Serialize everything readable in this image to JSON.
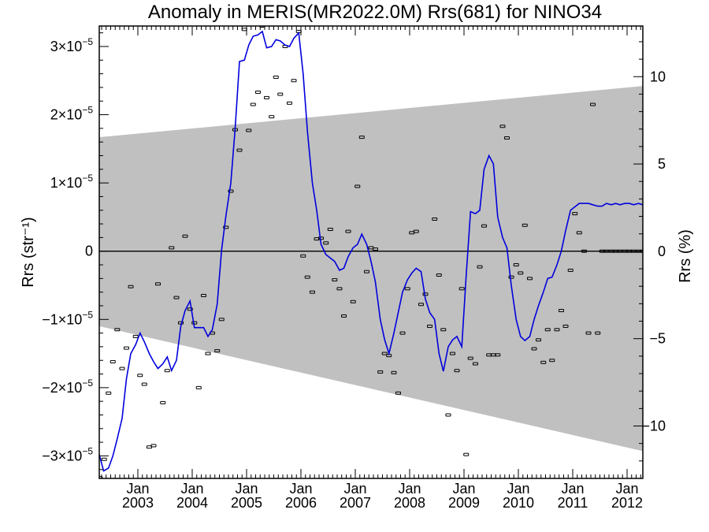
{
  "chart_data": {
    "type": "line",
    "title": "Anomaly in MERIS(MR2022.0M) Rrs(681) for NINO34",
    "ylabel_left": "Rrs (str⁻¹)",
    "ylabel_right": "Rrs (%)",
    "x_tick_month": "Jan",
    "x_tick_labels": [
      {
        "x": 2003.0,
        "year": "2003"
      },
      {
        "x": 2004.0,
        "year": "2004"
      },
      {
        "x": 2005.0,
        "year": "2005"
      },
      {
        "x": 2006.0,
        "year": "2006"
      },
      {
        "x": 2007.0,
        "year": "2007"
      },
      {
        "x": 2008.0,
        "year": "2008"
      },
      {
        "x": 2009.0,
        "year": "2009"
      },
      {
        "x": 2010.0,
        "year": "2010"
      },
      {
        "x": 2011.0,
        "year": "2011"
      },
      {
        "x": 2012.0,
        "year": "2012"
      }
    ],
    "y_tick_labels": [
      {
        "y": 3e-05,
        "label": "3×10",
        "exp": "−5"
      },
      {
        "y": 2e-05,
        "label": "2×10",
        "exp": "−5"
      },
      {
        "y": 1e-05,
        "label": "1×10",
        "exp": "−5"
      },
      {
        "y": 0,
        "label": "0",
        "exp": ""
      },
      {
        "y": -1e-05,
        "label": "−1×10",
        "exp": "−5"
      },
      {
        "y": -2e-05,
        "label": "−2×10",
        "exp": "−5"
      },
      {
        "y": -3e-05,
        "label": "−3×10",
        "exp": "−5"
      }
    ],
    "y2_tick_labels": [
      {
        "y": 10,
        "label": "10"
      },
      {
        "y": 5,
        "label": "5"
      },
      {
        "y": 0,
        "label": "0"
      },
      {
        "y": -5,
        "label": "−5"
      },
      {
        "y": -10,
        "label": "−10"
      }
    ],
    "xlim": [
      2002.29,
      2012.29
    ],
    "ylim": [
      -3.33e-05,
      3.3e-05
    ],
    "y2lim": [
      -13.0,
      12.9
    ],
    "grid": false,
    "colors": {
      "line": "#0000dd",
      "band": "#c0c0c0",
      "points": "#000000"
    },
    "band": {
      "x": [
        2002.29,
        2012.29
      ],
      "upper": [
        1.67e-05,
        2.42e-05
      ],
      "lower": [
        -1.1e-05,
        -2.93e-05
      ]
    },
    "series": [
      {
        "kind": "line",
        "x": [
          2002.29,
          2002.37,
          2002.46,
          2002.54,
          2002.62,
          2002.71,
          2002.79,
          2002.87,
          2002.96,
          2003.04,
          2003.12,
          2003.21,
          2003.29,
          2003.37,
          2003.46,
          2003.54,
          2003.62,
          2003.71,
          2003.79,
          2003.87,
          2003.96,
          2004.04,
          2004.12,
          2004.21,
          2004.29,
          2004.37,
          2004.46,
          2004.54,
          2004.62,
          2004.71,
          2004.79,
          2004.87,
          2004.96,
          2005.04,
          2005.12,
          2005.21,
          2005.29,
          2005.37,
          2005.46,
          2005.54,
          2005.62,
          2005.71,
          2005.79,
          2005.87,
          2005.96,
          2006.04,
          2006.12,
          2006.21,
          2006.29,
          2006.37,
          2006.46,
          2006.54,
          2006.62,
          2006.71,
          2006.79,
          2006.87,
          2006.96,
          2007.04,
          2007.12,
          2007.21,
          2007.29,
          2007.37,
          2007.46,
          2007.54,
          2007.62,
          2007.71,
          2007.79,
          2007.87,
          2007.96,
          2008.04,
          2008.12,
          2008.21,
          2008.29,
          2008.37,
          2008.46,
          2008.54,
          2008.62,
          2008.71,
          2008.79,
          2008.87,
          2008.96,
          2009.04,
          2009.12,
          2009.21,
          2009.29,
          2009.37,
          2009.46,
          2009.54,
          2009.62,
          2009.71,
          2009.79,
          2009.87,
          2009.96,
          2010.04,
          2010.12,
          2010.21,
          2010.29,
          2010.37,
          2010.46,
          2010.54,
          2010.62,
          2010.71,
          2010.79,
          2010.87,
          2010.96,
          2011.04,
          2011.12,
          2011.21,
          2011.29,
          2011.37,
          2011.46,
          2011.54,
          2011.62,
          2011.71,
          2011.79,
          2011.87,
          2011.96,
          2012.04,
          2012.12,
          2012.21,
          2012.29
        ],
        "y": [
          -2.98e-05,
          -3.22e-05,
          -3.18e-05,
          -3e-05,
          -2.75e-05,
          -2.45e-05,
          -1.87e-05,
          -1.5e-05,
          -1.37e-05,
          -1.2e-05,
          -1.33e-05,
          -1.5e-05,
          -1.62e-05,
          -1.72e-05,
          -1.65e-05,
          -1.55e-05,
          -1.75e-05,
          -1.6e-05,
          -1.1e-05,
          -8.7e-06,
          -7.3e-06,
          -1.12e-05,
          -1.12e-05,
          -1.12e-05,
          -1.25e-05,
          -1.15e-05,
          -7.8e-06,
          2e-07,
          5.2e-06,
          1e-05,
          1.8e-05,
          2.78e-05,
          2.8e-05,
          3.02e-05,
          3.15e-05,
          3.17e-05,
          3.22e-05,
          2.98e-05,
          3e-05,
          3.1e-05,
          3.08e-05,
          3.02e-05,
          3e-05,
          3.12e-05,
          3.2e-05,
          2.6e-05,
          1.75e-05,
          1e-05,
          6e-06,
          1e-06,
          -5e-07,
          -1e-06,
          -1.5e-06,
          -2.8e-06,
          -2.5e-06,
          -8e-07,
          5e-07,
          1e-06,
          2.5e-06,
          1e-06,
          -1.5e-06,
          -4.5e-06,
          -1e-05,
          -1.3e-05,
          -1.5e-05,
          -1.2e-05,
          -9e-06,
          -6e-06,
          -4.2e-06,
          -3.2e-06,
          -2.5e-06,
          -3e-06,
          -7e-06,
          -9e-06,
          -1e-05,
          -1.5e-05,
          -1.76e-05,
          -1.4e-05,
          -1.3e-05,
          -1.25e-05,
          -1.4e-05,
          -3.5e-06,
          5.8e-06,
          5.5e-06,
          6e-06,
          1.2e-05,
          1.4e-05,
          1.28e-05,
          5e-06,
          2e-06,
          5e-07,
          -5e-06,
          -1e-05,
          -1.25e-05,
          -1.31e-05,
          -1.25e-05,
          -1e-05,
          -8e-06,
          -6e-06,
          -4e-06,
          -3.8e-06,
          -2e-06,
          0.0,
          3e-06,
          6e-06,
          6.5e-06,
          7e-06,
          7e-06,
          7e-06,
          6.8e-06,
          6.6e-06,
          6.6e-06,
          7e-06,
          6.8e-06,
          7e-06,
          6.8e-06,
          7e-06,
          7e-06,
          6.8e-06,
          7e-06,
          6.8e-06
        ]
      },
      {
        "kind": "points",
        "x": [
          2002.3,
          2002.38,
          2002.46,
          2002.54,
          2002.62,
          2002.71,
          2002.79,
          2002.87,
          2002.96,
          2003.04,
          2003.12,
          2003.21,
          2003.29,
          2003.37,
          2003.46,
          2003.54,
          2003.62,
          2003.71,
          2003.79,
          2003.87,
          2003.96,
          2004.04,
          2004.12,
          2004.21,
          2004.29,
          2004.37,
          2004.46,
          2004.54,
          2004.62,
          2004.71,
          2004.79,
          2004.87,
          2004.96,
          2005.04,
          2005.12,
          2005.21,
          2005.29,
          2005.37,
          2005.46,
          2005.54,
          2005.62,
          2005.71,
          2005.79,
          2005.87,
          2005.96,
          2006.04,
          2006.12,
          2006.21,
          2006.29,
          2006.37,
          2006.46,
          2006.54,
          2006.62,
          2006.71,
          2006.79,
          2006.87,
          2006.96,
          2007.04,
          2007.12,
          2007.21,
          2007.29,
          2007.37,
          2007.46,
          2007.54,
          2007.62,
          2007.71,
          2007.79,
          2007.87,
          2007.96,
          2008.04,
          2008.12,
          2008.21,
          2008.29,
          2008.37,
          2008.46,
          2008.54,
          2008.62,
          2008.71,
          2008.79,
          2008.87,
          2008.96,
          2009.04,
          2009.12,
          2009.21,
          2009.29,
          2009.37,
          2009.46,
          2009.54,
          2009.62,
          2009.71,
          2009.79,
          2009.87,
          2009.96,
          2010.04,
          2010.12,
          2010.21,
          2010.29,
          2010.37,
          2010.46,
          2010.54,
          2010.62,
          2010.71,
          2010.79,
          2010.87,
          2010.96,
          2011.04,
          2011.12,
          2011.21,
          2011.29,
          2011.37,
          2011.46,
          2011.54,
          2011.62,
          2011.71,
          2011.79,
          2011.87,
          2011.96,
          2012.04,
          2012.12,
          2012.21,
          2012.29
        ],
        "y": [
          -3.32e-05,
          -3.05e-05,
          -2.08e-05,
          -1.62e-05,
          -1.15e-05,
          -1.72e-05,
          -1.42e-05,
          -5.2e-06,
          -1.25e-05,
          -1.82e-05,
          -1.95e-05,
          -2.87e-05,
          -2.85e-05,
          -4.8e-06,
          -2.22e-05,
          -1.75e-05,
          5e-07,
          -6.8e-06,
          -1.05e-05,
          2.2e-06,
          -8.5e-06,
          -1.05e-05,
          -2e-05,
          -6.5e-06,
          -1.5e-05,
          -1.2e-05,
          -1.46e-05,
          -1e-05,
          3.5e-06,
          8.8e-06,
          1.78e-05,
          1.48e-05,
          3.25e-05,
          1.77e-05,
          2.15e-05,
          2.33e-05,
          3.3e-05,
          2.25e-05,
          1.97e-05,
          2.55e-05,
          2.3e-05,
          3e-05,
          2.17e-05,
          2.5e-05,
          3.22e-05,
          -7e-07,
          -3.8e-06,
          -6e-06,
          1.8e-06,
          1.9e-06,
          1.2e-06,
          3.2e-06,
          -4.2e-06,
          -5.5e-06,
          -9.5e-06,
          2.9e-06,
          -7.4e-06,
          9.5e-06,
          1.67e-05,
          -3e-06,
          5e-07,
          3e-07,
          -1.77e-05,
          -1.5e-05,
          -1.53e-05,
          -1.78e-05,
          -2.08e-05,
          -1.2e-05,
          -5.5e-06,
          2.7e-06,
          2.9e-06,
          -7.8e-06,
          -6.3e-06,
          -1.1e-05,
          4.7e-06,
          -3.5e-06,
          -1.15e-05,
          -2.4e-05,
          -1.5e-05,
          -1.75e-05,
          -5.5e-06,
          -2.98e-05,
          -1.57e-05,
          -1.65e-05,
          -2.3e-06,
          3.7e-06,
          -1.52e-05,
          -1.52e-05,
          -1.52e-05,
          1.83e-05,
          1.66e-05,
          -3.8e-06,
          -2e-06,
          -3.2e-06,
          3.8e-06,
          -4e-06,
          -1.43e-05,
          -1.3e-05,
          -1.63e-05,
          -1.15e-05,
          -1.6e-05,
          -1.15e-05,
          -8.7e-06,
          -1.1e-05,
          -2.8e-06,
          5.5e-06,
          2.7e-06,
          0.0,
          -1.2e-05,
          2.15e-05,
          -1.2e-05,
          0.0,
          0.0,
          0.0,
          0.0,
          0.0,
          0.0,
          0.0,
          0.0,
          0.0,
          0.0
        ]
      }
    ]
  }
}
